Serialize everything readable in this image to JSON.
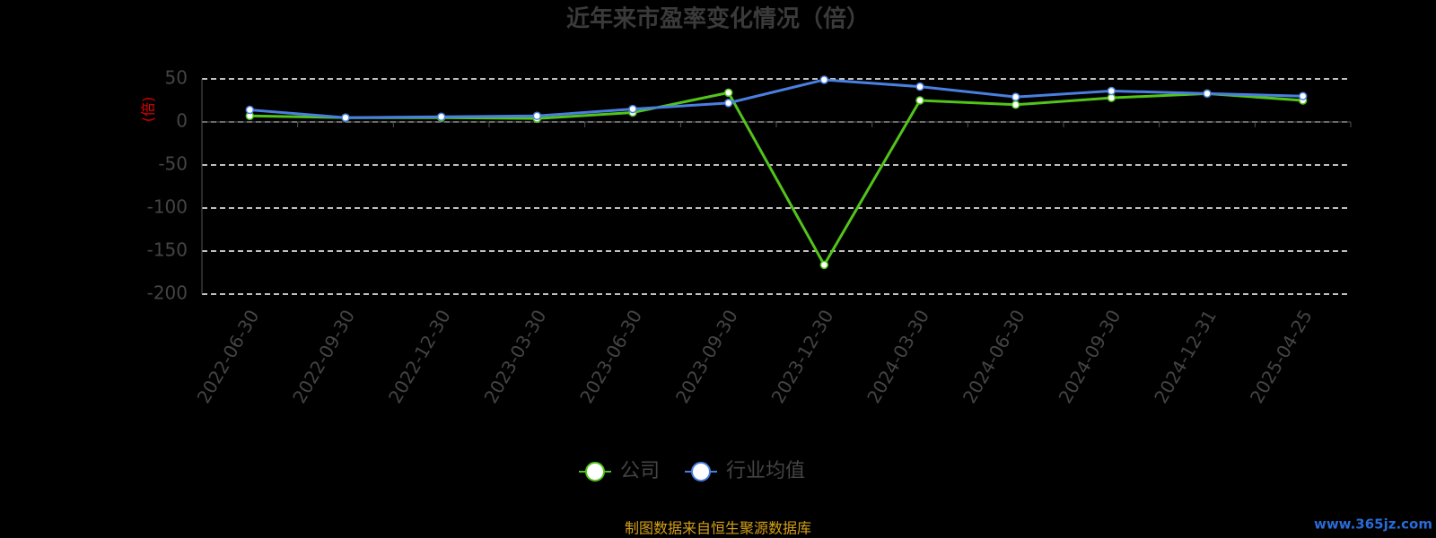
{
  "chart_data": {
    "type": "line",
    "title": "近年来市盈率变化情况（倍）",
    "y_label": "(倍)",
    "categories": [
      "2022-06-30",
      "2022-09-30",
      "2022-12-30",
      "2023-03-30",
      "2023-06-30",
      "2023-09-30",
      "2023-12-30",
      "2024-03-30",
      "2024-06-30",
      "2024-09-30",
      "2024-12-31",
      "2025-04-25"
    ],
    "series": [
      {
        "name": "公司",
        "color": "#52c41a",
        "values": [
          7,
          5,
          5,
          4,
          10.9,
          34,
          -166,
          25,
          20,
          28,
          33,
          25
        ]
      },
      {
        "name": "行业均值",
        "color": "#4a7fe0",
        "values": [
          14,
          5,
          6,
          7,
          15,
          22,
          49,
          41,
          29,
          36,
          33,
          30
        ]
      }
    ],
    "ylim": [
      -200,
      50
    ],
    "yticks": [
      -200,
      -150,
      -100,
      -50,
      0,
      50
    ],
    "grid": true,
    "source": "制图数据来自恒生聚源数据库",
    "watermark": "www.365jz.com"
  }
}
